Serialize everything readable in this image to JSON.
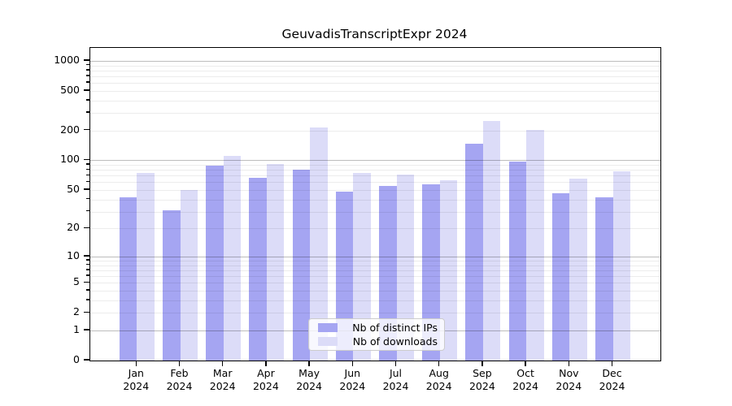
{
  "title": "GeuvadisTranscriptExpr 2024",
  "colors": {
    "distinct_ips": "#a5a5f2",
    "downloads": "#dcdcf8",
    "axis": "#000000",
    "grid_major": "#bdbdbd",
    "grid_minor": "#ededed"
  },
  "legend": {
    "items": [
      {
        "label": "Nb of distinct IPs",
        "color": "#a5a5f2"
      },
      {
        "label": "Nb of downloads",
        "color": "#dcdcf8"
      }
    ]
  },
  "chart_data": {
    "type": "bar",
    "title": "GeuvadisTranscriptExpr 2024",
    "xlabel": "",
    "ylabel": "",
    "yscale": "log1p",
    "ylim": [
      0,
      1300
    ],
    "yticks": [
      0,
      1,
      2,
      5,
      10,
      20,
      50,
      100,
      200,
      500,
      1000
    ],
    "grid": "horizontal",
    "legend_position": "lower center",
    "categories": [
      {
        "month": "Jan",
        "year": "2024"
      },
      {
        "month": "Feb",
        "year": "2024"
      },
      {
        "month": "Mar",
        "year": "2024"
      },
      {
        "month": "Apr",
        "year": "2024"
      },
      {
        "month": "May",
        "year": "2024"
      },
      {
        "month": "Jun",
        "year": "2024"
      },
      {
        "month": "Jul",
        "year": "2024"
      },
      {
        "month": "Aug",
        "year": "2024"
      },
      {
        "month": "Sep",
        "year": "2024"
      },
      {
        "month": "Oct",
        "year": "2024"
      },
      {
        "month": "Nov",
        "year": "2024"
      },
      {
        "month": "Dec",
        "year": "2024"
      }
    ],
    "series": [
      {
        "name": "Nb of distinct IPs",
        "color": "#a5a5f2",
        "values": [
          42,
          31,
          89,
          66,
          80,
          48,
          55,
          57,
          148,
          98,
          46,
          42
        ]
      },
      {
        "name": "Nb of downloads",
        "color": "#dcdcf8",
        "values": [
          75,
          50,
          110,
          92,
          215,
          75,
          72,
          63,
          250,
          204,
          65,
          78
        ]
      }
    ]
  }
}
